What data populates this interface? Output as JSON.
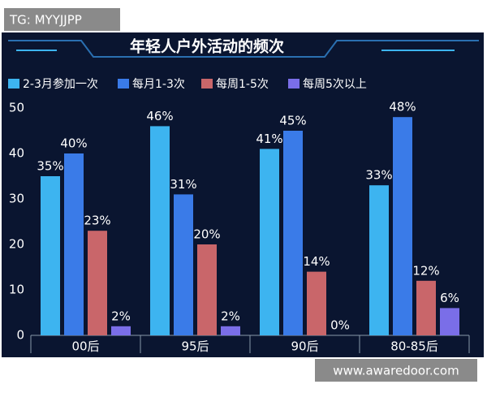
{
  "chart_data": {
    "type": "bar",
    "title": "年轻人户外活动的频次",
    "categories": [
      "00后",
      "95后",
      "90后",
      "80-85后"
    ],
    "series": [
      {
        "name": "2-3月参加一次",
        "color": "#3db4f0",
        "values": [
          35,
          46,
          41,
          33
        ],
        "value_labels": [
          "35%",
          "46%",
          "41%",
          "33%"
        ]
      },
      {
        "name": "每月1-3次",
        "color": "#3a7be8",
        "values": [
          40,
          31,
          45,
          48
        ],
        "value_labels": [
          "40%",
          "31%",
          "45%",
          "48%"
        ]
      },
      {
        "name": "每周1-5次",
        "color": "#c9666a",
        "values": [
          23,
          20,
          14,
          12
        ],
        "value_labels": [
          "23%",
          "20%",
          "14%",
          "12%"
        ]
      },
      {
        "name": "每周5次以上",
        "color": "#7a6ee8",
        "values": [
          2,
          2,
          0,
          6
        ],
        "value_labels": [
          "2%",
          "2%",
          "0%",
          "6%"
        ]
      }
    ],
    "ylim": [
      0,
      50
    ],
    "yticks": [
      0,
      10,
      20,
      30,
      40,
      50
    ],
    "grid": false,
    "legend": "top-left"
  },
  "watermark": "TG: MYYJJPP",
  "source": "www.awaredoor.com"
}
